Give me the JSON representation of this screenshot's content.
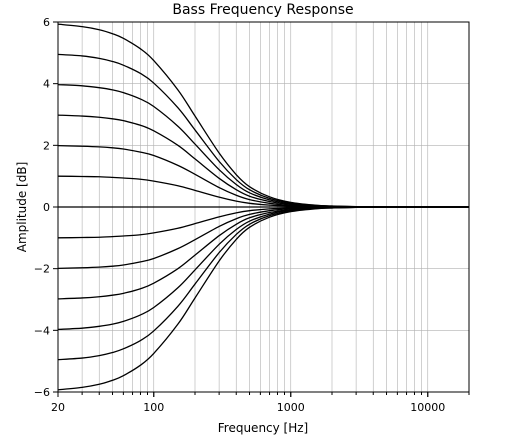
{
  "chart_data": {
    "type": "line",
    "title": "Bass Frequency Response",
    "xlabel": "Frequency [Hz]",
    "ylabel": "Amplitude [dB]",
    "x_scale": "log",
    "xlim": [
      20,
      20000
    ],
    "ylim": [
      -6,
      6
    ],
    "x_ticks": [
      {
        "value": 20,
        "label": "20"
      },
      {
        "value": 100,
        "label": "100"
      },
      {
        "value": 1000,
        "label": "1000"
      },
      {
        "value": 10000,
        "label": "10000"
      }
    ],
    "y_ticks": [
      {
        "value": -6,
        "label": "−6"
      },
      {
        "value": -4,
        "label": "−4"
      },
      {
        "value": -2,
        "label": "−2"
      },
      {
        "value": 0,
        "label": "0"
      },
      {
        "value": 2,
        "label": "2"
      },
      {
        "value": 4,
        "label": "4"
      },
      {
        "value": 6,
        "label": "6"
      }
    ],
    "grid": true,
    "legend": "none",
    "line_color": "#000000",
    "x": [
      20,
      30,
      40,
      50,
      60,
      80,
      100,
      150,
      200,
      300,
      400,
      500,
      700,
      1000,
      1500,
      2000,
      3000,
      5000,
      10000,
      20000
    ],
    "series": [
      {
        "values": [
          5.93,
          5.85,
          5.75,
          5.62,
          5.47,
          5.13,
          4.75,
          3.8,
          2.95,
          1.75,
          1.05,
          0.66,
          0.33,
          0.15,
          0.06,
          0.03,
          0.01,
          0.0,
          0.0,
          0.0
        ]
      },
      {
        "values": [
          4.95,
          4.9,
          4.82,
          4.72,
          4.6,
          4.33,
          4.02,
          3.22,
          2.5,
          1.48,
          0.89,
          0.56,
          0.28,
          0.13,
          0.05,
          0.03,
          0.01,
          0.0,
          0.0,
          0.0
        ]
      },
      {
        "values": [
          3.97,
          3.93,
          3.87,
          3.8,
          3.71,
          3.5,
          3.26,
          2.62,
          2.04,
          1.21,
          0.73,
          0.46,
          0.23,
          0.1,
          0.04,
          0.02,
          0.01,
          0.0,
          0.0,
          0.0
        ]
      },
      {
        "values": [
          2.98,
          2.95,
          2.91,
          2.86,
          2.8,
          2.65,
          2.47,
          2.0,
          1.56,
          0.93,
          0.56,
          0.35,
          0.18,
          0.08,
          0.03,
          0.02,
          0.01,
          0.0,
          0.0,
          0.0
        ]
      },
      {
        "values": [
          1.99,
          1.97,
          1.95,
          1.92,
          1.88,
          1.78,
          1.67,
          1.35,
          1.06,
          0.63,
          0.38,
          0.24,
          0.12,
          0.05,
          0.02,
          0.01,
          0.0,
          0.0,
          0.0,
          0.0
        ]
      },
      {
        "values": [
          1.0,
          0.99,
          0.98,
          0.96,
          0.94,
          0.9,
          0.84,
          0.69,
          0.54,
          0.32,
          0.19,
          0.12,
          0.06,
          0.03,
          0.01,
          0.01,
          0.0,
          0.0,
          0.0,
          0.0
        ]
      },
      {
        "values": [
          0,
          0,
          0,
          0,
          0,
          0,
          0,
          0,
          0,
          0,
          0,
          0,
          0,
          0,
          0,
          0,
          0,
          0,
          0,
          0
        ]
      },
      {
        "values": [
          -1.0,
          -0.99,
          -0.98,
          -0.96,
          -0.94,
          -0.9,
          -0.84,
          -0.69,
          -0.54,
          -0.32,
          -0.19,
          -0.12,
          -0.06,
          -0.03,
          -0.01,
          -0.01,
          0.0,
          0.0,
          0.0,
          0.0
        ]
      },
      {
        "values": [
          -1.99,
          -1.97,
          -1.95,
          -1.92,
          -1.88,
          -1.78,
          -1.67,
          -1.35,
          -1.06,
          -0.63,
          -0.38,
          -0.24,
          -0.12,
          -0.05,
          -0.02,
          -0.01,
          0.0,
          0.0,
          0.0,
          0.0
        ]
      },
      {
        "values": [
          -2.98,
          -2.95,
          -2.91,
          -2.86,
          -2.8,
          -2.65,
          -2.47,
          -2.0,
          -1.56,
          -0.93,
          -0.56,
          -0.35,
          -0.18,
          -0.08,
          -0.03,
          -0.02,
          -0.01,
          0.0,
          0.0,
          0.0
        ]
      },
      {
        "values": [
          -3.97,
          -3.93,
          -3.87,
          -3.8,
          -3.71,
          -3.5,
          -3.26,
          -2.62,
          -2.04,
          -1.21,
          -0.73,
          -0.46,
          -0.23,
          -0.1,
          -0.04,
          -0.02,
          -0.01,
          0.0,
          0.0,
          0.0
        ]
      },
      {
        "values": [
          -4.95,
          -4.9,
          -4.82,
          -4.72,
          -4.6,
          -4.33,
          -4.02,
          -3.22,
          -2.5,
          -1.48,
          -0.89,
          -0.56,
          -0.28,
          -0.13,
          -0.05,
          -0.03,
          -0.01,
          0.0,
          0.0,
          0.0
        ]
      },
      {
        "values": [
          -5.93,
          -5.85,
          -5.75,
          -5.62,
          -5.47,
          -5.13,
          -4.75,
          -3.8,
          -2.95,
          -1.75,
          -1.05,
          -0.66,
          -0.33,
          -0.15,
          -0.06,
          -0.03,
          -0.01,
          0.0,
          0.0,
          0.0
        ]
      }
    ]
  }
}
